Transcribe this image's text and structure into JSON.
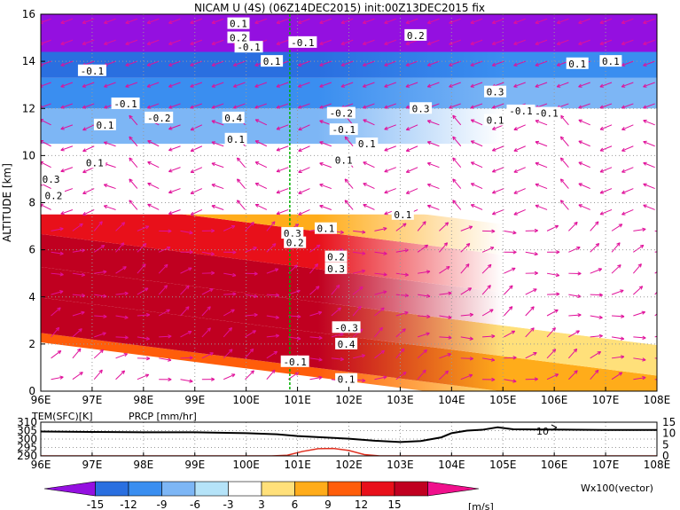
{
  "title": "NICAM U (4S) (06Z14DEC2015) init:00Z13DEC2015 fix",
  "chart_data": [
    {
      "type": "heatmap",
      "subtype": "longitude-height cross section (shaded U with contours and wind vectors)",
      "title": "NICAM U (4S) (06Z14DEC2015) init:00Z13DEC2015 fix",
      "ylabel": "ALTITUDE [km]",
      "xlim": [
        96,
        108
      ],
      "ylim": [
        0,
        16
      ],
      "x_ticks": [
        "96E",
        "97E",
        "98E",
        "99E",
        "100E",
        "101E",
        "102E",
        "103E",
        "104E",
        "105E",
        "106E",
        "107E",
        "108E"
      ],
      "y_ticks": [
        "0",
        "2",
        "4",
        "6",
        "8",
        "10",
        "12",
        "14",
        "16"
      ],
      "grid": true,
      "marker_longitude": 100.85,
      "marker_color": "#00b000",
      "shading_bands": [
        {
          "altitude": [
            0.0,
            0.4
          ],
          "west_value": 9,
          "east_value": 3
        },
        {
          "altitude": [
            0.4,
            1.9
          ],
          "west_value": 15,
          "east_value": 6
        },
        {
          "altitude": [
            1.9,
            3.2
          ],
          "west_value": 15,
          "east_value": 3
        },
        {
          "altitude": [
            3.2,
            4.6
          ],
          "west_value": 15,
          "east_value": 0
        },
        {
          "altitude": [
            4.6,
            6.2
          ],
          "west_value": 12,
          "east_value": 0
        },
        {
          "altitude": [
            6.2,
            7.5
          ],
          "west_value": 6,
          "east_value": 0
        },
        {
          "altitude": [
            7.5,
            9.0
          ],
          "west_value": 0,
          "east_value": -3
        },
        {
          "altitude": [
            9.0,
            10.5
          ],
          "west_value": -3,
          "east_value": 0
        },
        {
          "altitude": [
            10.5,
            12.0
          ],
          "west_value": -9,
          "east_value": -3
        },
        {
          "altitude": [
            12.0,
            13.3
          ],
          "west_value": -12,
          "east_value": -9
        },
        {
          "altitude": [
            13.3,
            14.4
          ],
          "west_value": -15,
          "east_value": -12
        },
        {
          "altitude": [
            14.4,
            16.0
          ],
          "west_value": -16,
          "east_value": -16
        }
      ],
      "contour_labels": [
        {
          "text": "-0.1",
          "lon": 100.05,
          "alt": 14.6
        },
        {
          "text": "-0.1",
          "lon": 97.0,
          "alt": 13.6
        },
        {
          "text": "-0.1",
          "lon": 101.1,
          "alt": 14.8
        },
        {
          "text": "0.1",
          "lon": 100.5,
          "alt": 14.0
        },
        {
          "text": "0.1",
          "lon": 99.85,
          "alt": 15.6
        },
        {
          "text": "0.2",
          "lon": 99.85,
          "alt": 15.0
        },
        {
          "text": "0.2",
          "lon": 103.3,
          "alt": 15.1
        },
        {
          "text": "0.1",
          "lon": 106.45,
          "alt": 13.9
        },
        {
          "text": "0.1",
          "lon": 107.1,
          "alt": 14.0
        },
        {
          "text": "-0.1",
          "lon": 97.65,
          "alt": 12.2
        },
        {
          "text": "0.1",
          "lon": 97.25,
          "alt": 11.3
        },
        {
          "text": "-0.2",
          "lon": 98.3,
          "alt": 11.6
        },
        {
          "text": "-0.2",
          "lon": 101.85,
          "alt": 11.8
        },
        {
          "text": "-0.1",
          "lon": 101.9,
          "alt": 11.1
        },
        {
          "text": "0.3",
          "lon": 104.85,
          "alt": 12.7
        },
        {
          "text": "0.3",
          "lon": 103.4,
          "alt": 12.0
        },
        {
          "text": "-0.1",
          "lon": 105.35,
          "alt": 11.9
        },
        {
          "text": "-0.1",
          "lon": 105.85,
          "alt": 11.8
        },
        {
          "text": "0.1",
          "lon": 104.85,
          "alt": 11.5
        },
        {
          "text": "0.4",
          "lon": 99.75,
          "alt": 11.6
        },
        {
          "text": "0.1",
          "lon": 99.8,
          "alt": 10.7
        },
        {
          "text": "0.1",
          "lon": 102.35,
          "alt": 10.5
        },
        {
          "text": "0.1",
          "lon": 97.05,
          "alt": 9.7
        },
        {
          "text": "0.3",
          "lon": 96.2,
          "alt": 9.0
        },
        {
          "text": "0.2",
          "lon": 96.25,
          "alt": 8.3
        },
        {
          "text": "0.1",
          "lon": 101.9,
          "alt": 9.8
        },
        {
          "text": "0.1",
          "lon": 103.05,
          "alt": 7.5
        },
        {
          "text": "0.1",
          "lon": 101.55,
          "alt": 6.9
        },
        {
          "text": "0.3",
          "lon": 100.9,
          "alt": 6.7
        },
        {
          "text": "0.2",
          "lon": 100.95,
          "alt": 6.3
        },
        {
          "text": "0.2",
          "lon": 101.75,
          "alt": 5.7
        },
        {
          "text": "0.3",
          "lon": 101.75,
          "alt": 5.2
        },
        {
          "text": "-0.3",
          "lon": 101.95,
          "alt": 2.7
        },
        {
          "text": "0.4",
          "lon": 101.95,
          "alt": 2.0
        },
        {
          "text": "-0.1",
          "lon": 100.95,
          "alt": 1.25
        },
        {
          "text": "0.1",
          "lon": 101.95,
          "alt": 0.5
        }
      ]
    },
    {
      "type": "line",
      "title": "",
      "xlim": [
        96,
        108
      ],
      "x_ticks": [
        "96E",
        "97E",
        "98E",
        "99E",
        "100E",
        "101E",
        "102E",
        "103E",
        "104E",
        "105E",
        "106E",
        "107E",
        "108E"
      ],
      "series": [
        {
          "name": "TEM(SFC)[K]",
          "axis": "left",
          "y_ticks": [
            "290",
            "295",
            "300",
            "305",
            "310"
          ],
          "ylim": [
            290,
            310
          ],
          "x": [
            96,
            97,
            98,
            99,
            100,
            100.6,
            101,
            101.5,
            102,
            102.5,
            103,
            103.4,
            103.8,
            104,
            104.3,
            104.6,
            104.9,
            105.2,
            106,
            107,
            108
          ],
          "values": [
            304.5,
            304.2,
            304.0,
            304.0,
            303.5,
            302.8,
            301.8,
            301.0,
            300.2,
            299.0,
            298.2,
            298.8,
            301.0,
            303.5,
            305.0,
            305.5,
            307.0,
            305.8,
            305.6,
            305.4,
            305.4
          ],
          "color": "#000000"
        },
        {
          "name": "PRCP [mm/hr]",
          "axis": "right",
          "y_ticks": [
            "0",
            "5",
            "10",
            "15"
          ],
          "ylim": [
            0,
            15
          ],
          "x": [
            96,
            100.5,
            100.8,
            101.1,
            101.4,
            101.7,
            102.0,
            102.3,
            102.6,
            103,
            108
          ],
          "values": [
            0,
            0,
            0.3,
            2.0,
            3.2,
            3.3,
            2.4,
            0.6,
            0,
            0,
            0
          ],
          "color": "#e03020"
        }
      ],
      "annotation": "10"
    }
  ],
  "colorbar": {
    "labels": [
      "-15",
      "-12",
      "-9",
      "-6",
      "-3",
      "3",
      "6",
      "9",
      "12",
      "15"
    ],
    "colors": [
      "#9410e0",
      "#2a6fe0",
      "#3a8ef0",
      "#7db6f5",
      "#b5e3f8",
      "#ffffff",
      "#ffe07a",
      "#ffac1a",
      "#ff5d0a",
      "#e8101a",
      "#c00020",
      "#f0108c"
    ],
    "unit": "[m/s]"
  },
  "vector_label": "Wx100(vector)",
  "colors": {
    "vector": "#e0109a",
    "grid": "#999999",
    "marker": "#00b000"
  }
}
